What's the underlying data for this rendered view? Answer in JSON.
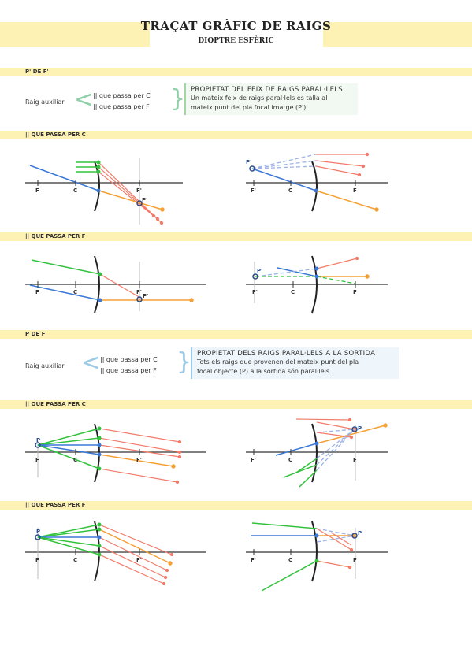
{
  "header": {
    "title": "TRAÇAT GRÀFIC DE RAIGS",
    "subtitle": "DIOPTRE ESFÈRIC"
  },
  "section1": {
    "band_label": "P' DE F'",
    "aux_label": "Raig auxiliar",
    "option1": "|| que passa per C",
    "option2": "|| que passa per F",
    "note_title": "PROPIETAT DEL FEIX DE RAIGS PARAL·LELS",
    "note_line1": "Un mateix feix de raigs paral·lels es talla al",
    "note_line2": "mateix punt del pla focal imatge (P')."
  },
  "bands": {
    "c1": "|| QUE PASSA PER C",
    "f1": "|| QUE PASSA PER F",
    "c2": "|| QUE PASSA PER C",
    "f2": "|| QUE PASSA PER F"
  },
  "section2": {
    "band_label": "P DE F",
    "aux_label": "Raig auxiliar",
    "option1": "|| que passa per C",
    "option2": "|| que passa per F",
    "note_title": "PROPIETAT DELS RAIGS PARAL·LELS A LA SORTIDA",
    "note_line1": "Tots els raigs que provenen del mateix punt del pla",
    "note_line2": "focal objecte (P) a la sortida són paral·lels."
  },
  "labels": {
    "F": "F",
    "C": "C",
    "Fp": "F'",
    "P": "P",
    "Pp": "P'"
  },
  "colors": {
    "band": "#fdf1b3",
    "green": "#33c23d",
    "blue": "#3a78d8",
    "orange": "#f5a035",
    "red": "#f27b6a",
    "dash": "#9db3e8"
  }
}
